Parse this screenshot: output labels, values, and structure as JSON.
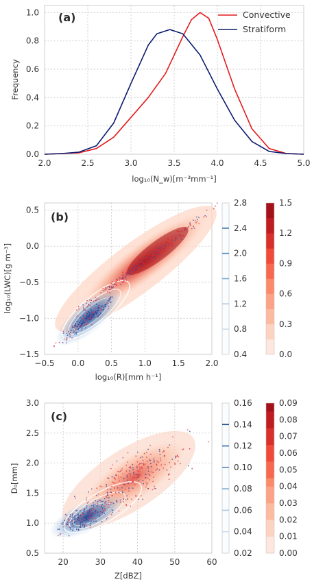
{
  "chart_data": [
    {
      "type": "line",
      "panel_label": "(a)",
      "xlabel": "log₁₀(N_w)[m⁻³mm⁻¹]",
      "ylabel": "Frequency",
      "xlim": [
        2.0,
        5.0
      ],
      "ylim": [
        0.0,
        1.05
      ],
      "x_ticks": [
        "2.0",
        "2.5",
        "3.0",
        "3.5",
        "4.0",
        "4.5",
        "5.0"
      ],
      "y_ticks": [
        "0.0",
        "0.2",
        "0.4",
        "0.6",
        "0.8",
        "1.0"
      ],
      "grid": true,
      "legend_position": "top-right",
      "series": [
        {
          "name": "Convective",
          "color": "#e41a1c",
          "x": [
            2.0,
            2.2,
            2.4,
            2.6,
            2.8,
            3.0,
            3.2,
            3.4,
            3.6,
            3.7,
            3.8,
            3.9,
            4.0,
            4.2,
            4.4,
            4.6,
            4.8,
            5.0
          ],
          "y": [
            0.0,
            0.005,
            0.01,
            0.04,
            0.12,
            0.26,
            0.4,
            0.57,
            0.83,
            0.95,
            1.0,
            0.96,
            0.81,
            0.46,
            0.18,
            0.04,
            0.005,
            0.0
          ]
        },
        {
          "name": "Stratiform",
          "color": "#0b1a6e",
          "x": [
            2.0,
            2.2,
            2.4,
            2.6,
            2.8,
            3.0,
            3.2,
            3.3,
            3.45,
            3.6,
            3.8,
            4.0,
            4.2,
            4.4,
            4.6,
            4.8,
            5.0
          ],
          "y": [
            0.0,
            0.005,
            0.015,
            0.06,
            0.22,
            0.5,
            0.77,
            0.85,
            0.88,
            0.85,
            0.7,
            0.46,
            0.24,
            0.09,
            0.02,
            0.005,
            0.0
          ]
        }
      ]
    },
    {
      "type": "heatmap",
      "panel_label": "(b)",
      "xlabel": "log₁₀(R)[mm h⁻¹]",
      "ylabel": "log₁₀(LWC)[g m⁻³]",
      "xlim": [
        -0.5,
        2.0
      ],
      "ylim": [
        -1.5,
        0.6
      ],
      "x_ticks": [
        "−0.5",
        "0.0",
        "0.5",
        "1.0",
        "1.5",
        "2.0"
      ],
      "y_ticks": [
        "−1.5",
        "−1.0",
        "−0.5",
        "0.0",
        "0.5"
      ],
      "colorbars": [
        {
          "cmap": "Blues",
          "ticks": [
            "0.4",
            "0.8",
            "1.2",
            "1.6",
            "2.0",
            "2.4",
            "2.8"
          ]
        },
        {
          "cmap": "Reds",
          "ticks": [
            "0.0",
            "0.3",
            "0.6",
            "0.9",
            "1.2",
            "1.5"
          ]
        }
      ]
    },
    {
      "type": "heatmap",
      "panel_label": "(c)",
      "xlabel": "Z[dBZ]",
      "ylabel": "D₀[mm]",
      "xlim": [
        15,
        60
      ],
      "ylim": [
        0.5,
        3.0
      ],
      "x_ticks": [
        "20",
        "30",
        "40",
        "50",
        "60"
      ],
      "y_ticks": [
        "0.5",
        "1.0",
        "1.5",
        "2.0",
        "2.5",
        "3.0"
      ],
      "colorbars": [
        {
          "cmap": "Blues",
          "ticks": [
            "0.02",
            "0.04",
            "0.06",
            "0.08",
            "0.10",
            "0.12",
            "0.14",
            "0.16"
          ]
        },
        {
          "cmap": "Reds",
          "ticks": [
            "0.00",
            "0.01",
            "0.02",
            "0.03",
            "0.04",
            "0.05",
            "0.06",
            "0.07",
            "0.08",
            "0.09"
          ]
        }
      ]
    }
  ]
}
